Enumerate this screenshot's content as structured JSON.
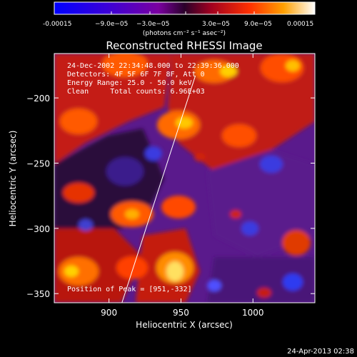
{
  "colorbar": {
    "tick_labels": [
      "-0.00015",
      "−9.0e−05",
      "−3.0e−05",
      "3.0e−05",
      "9.0e−05",
      "0.00015"
    ],
    "unit_label": "(photons cm⁻² s⁻¹ asec⁻²)"
  },
  "chart_data": {
    "type": "heatmap",
    "title": "Reconstructed RHESSI Image",
    "xlabel": "Heliocentric X (arcsec)",
    "ylabel": "Heliocentric Y (arcsec)",
    "xlim": [
      862,
      1043
    ],
    "ylim": [
      -357,
      -166
    ],
    "x_ticks": [
      900,
      950,
      1000
    ],
    "y_ticks": [
      -200,
      -250,
      -300,
      -350
    ],
    "x_tick_labels": [
      "900",
      "950",
      "1000"
    ],
    "y_tick_labels": [
      "−200",
      "−250",
      "−300",
      "−350"
    ],
    "value_range": [
      -0.00015,
      0.00015
    ],
    "annotations": [
      "24-Dec-2002 22:34:48.000 to 22:39:36.000",
      "Detectors: 4F 5F 6F 7F 8F, Att 0",
      "Energy Range: 25.0 - 50.0 keV",
      "Clean     Total counts: 6.96E+03"
    ],
    "peak_label": "Position of Peak = [951,-332]",
    "limb_line": [
      [
        909,
        -357
      ],
      [
        960,
        -183
      ]
    ]
  },
  "footer": {
    "date": "24-Apr-2013 02:38"
  }
}
